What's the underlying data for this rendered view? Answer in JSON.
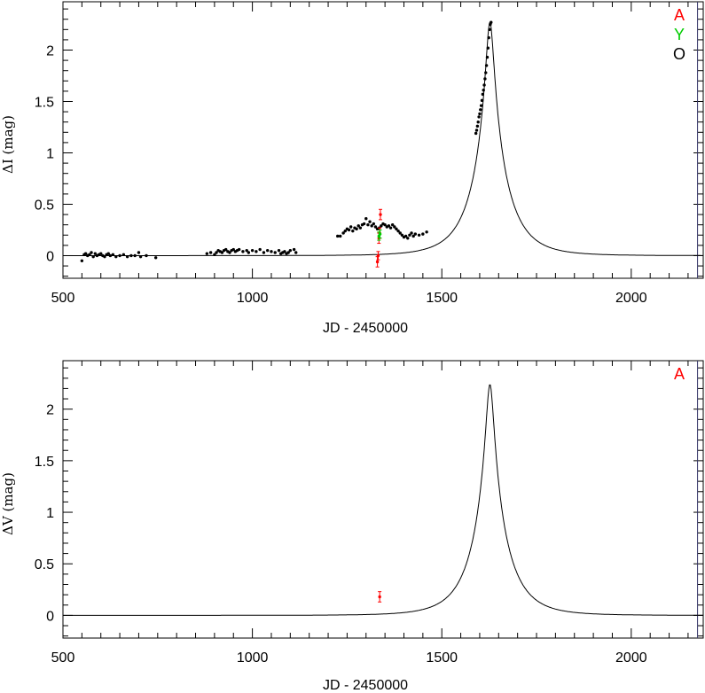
{
  "chart_data": [
    {
      "type": "scatter",
      "panel": "top",
      "xlabel": "JD - 2450000",
      "ylabel": "ΔI (mag)",
      "xlim": [
        500,
        2190
      ],
      "ylim": [
        -0.22,
        2.47
      ],
      "xticks": [
        500,
        1000,
        1500,
        2000
      ],
      "yticks": [
        0,
        0.5,
        1,
        1.5,
        2
      ],
      "ytick_labels": [
        "0",
        "0.5",
        "1",
        "1.5",
        "2"
      ],
      "vline_x": 2175,
      "legend": [
        {
          "label": "A",
          "color": "#ff0000"
        },
        {
          "label": "Y",
          "color": "#00cc00"
        },
        {
          "label": "O",
          "color": "#000000"
        }
      ],
      "model": {
        "t0": 1627,
        "peak": 2.27,
        "u0": 0.106,
        "tE": 88
      },
      "series": [
        {
          "label_ref": "O",
          "color": "#000000",
          "x": [
            550,
            556,
            560,
            565,
            570,
            575,
            580,
            585,
            590,
            595,
            600,
            605,
            610,
            615,
            620,
            625,
            632,
            640,
            650,
            660,
            670,
            680,
            690,
            700,
            705,
            720,
            745,
            880,
            890,
            900,
            905,
            910,
            915,
            920,
            925,
            930,
            935,
            940,
            945,
            950,
            955,
            960,
            965,
            975,
            985,
            990,
            1000,
            1010,
            1020,
            1030,
            1040,
            1050,
            1060,
            1070,
            1075,
            1080,
            1085,
            1090,
            1095,
            1100,
            1110,
            1115,
            1225,
            1232,
            1240,
            1245,
            1250,
            1255,
            1260,
            1265,
            1270,
            1275,
            1280,
            1285,
            1290,
            1295,
            1300,
            1305,
            1310,
            1315,
            1320,
            1325,
            1330,
            1335,
            1340,
            1345,
            1350,
            1355,
            1360,
            1365,
            1370,
            1375,
            1380,
            1385,
            1390,
            1395,
            1400,
            1405,
            1410,
            1415,
            1420,
            1425,
            1430,
            1440,
            1450,
            1460,
            1590,
            1592,
            1594,
            1596,
            1598,
            1600,
            1602,
            1604,
            1606,
            1608,
            1610,
            1612,
            1614,
            1616,
            1618,
            1620,
            1622,
            1624,
            1626,
            1628,
            1630
          ],
          "y": [
            -0.05,
            0.01,
            0.02,
            0.0,
            0.01,
            0.03,
            -0.01,
            0.02,
            0.0,
            0.01,
            0.02,
            0.0,
            -0.01,
            0.01,
            0.02,
            0.0,
            0.01,
            -0.01,
            0.0,
            0.01,
            -0.01,
            0.0,
            0.0,
            0.03,
            -0.01,
            0.0,
            -0.02,
            0.02,
            0.03,
            0.01,
            0.03,
            0.05,
            0.04,
            0.03,
            0.05,
            0.06,
            0.04,
            0.03,
            0.05,
            0.06,
            0.04,
            0.05,
            0.06,
            0.04,
            0.05,
            0.03,
            0.05,
            0.04,
            0.06,
            0.03,
            0.05,
            0.04,
            0.03,
            0.05,
            0.02,
            0.03,
            0.04,
            0.02,
            0.03,
            0.05,
            0.06,
            0.03,
            0.19,
            0.19,
            0.22,
            0.24,
            0.26,
            0.25,
            0.28,
            0.24,
            0.27,
            0.26,
            0.29,
            0.27,
            0.3,
            0.31,
            0.36,
            0.3,
            0.33,
            0.29,
            0.31,
            0.28,
            0.26,
            0.27,
            0.29,
            0.31,
            0.3,
            0.28,
            0.29,
            0.27,
            0.3,
            0.28,
            0.26,
            0.24,
            0.22,
            0.2,
            0.18,
            0.19,
            0.17,
            0.2,
            0.22,
            0.19,
            0.21,
            0.2,
            0.21,
            0.23,
            1.19,
            1.22,
            1.26,
            1.3,
            1.35,
            1.38,
            1.42,
            1.46,
            1.51,
            1.57,
            1.61,
            1.66,
            1.72,
            1.78,
            1.85,
            1.93,
            2.02,
            2.12,
            2.2,
            2.25,
            2.27
          ]
        },
        {
          "label_ref": "A",
          "color": "#ff0000",
          "x": [
            1330,
            1332,
            1334,
            1336,
            1338
          ],
          "y": [
            -0.06,
            0.0,
            0.17,
            0.22,
            0.4
          ],
          "err": [
            0.05,
            0.04,
            0.05,
            0.05,
            0.05
          ]
        },
        {
          "label_ref": "Y",
          "color": "#00cc00",
          "x": [
            1334,
            1337
          ],
          "y": [
            0.19,
            0.21
          ],
          "err": [
            0.04,
            0.04
          ]
        }
      ]
    },
    {
      "type": "scatter",
      "panel": "bottom",
      "xlabel": "JD - 2450000",
      "ylabel": "ΔV (mag)",
      "xlim": [
        500,
        2190
      ],
      "ylim": [
        -0.22,
        2.47
      ],
      "xticks": [
        500,
        1000,
        1500,
        2000
      ],
      "yticks": [
        0,
        0.5,
        1,
        1.5,
        2
      ],
      "ytick_labels": [
        "0",
        "0.5",
        "1",
        "1.5",
        "2"
      ],
      "vline_x": 2175,
      "legend": [
        {
          "label": "A",
          "color": "#ff0000"
        }
      ],
      "model": {
        "t0": 1627,
        "peak": 2.24,
        "u0": 0.106,
        "tE": 88
      },
      "series": [
        {
          "label_ref": "A",
          "color": "#ff0000",
          "x": [
            1336
          ],
          "y": [
            0.18
          ],
          "err": [
            0.05
          ]
        }
      ]
    }
  ]
}
